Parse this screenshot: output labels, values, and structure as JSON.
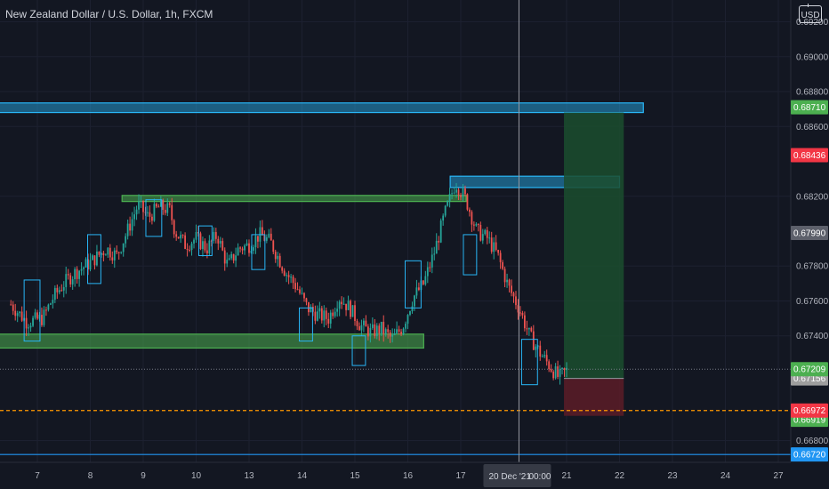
{
  "header": {
    "title": "New Zealand Dollar / U.S. Dollar, 1h, FXCM",
    "currency": "USD"
  },
  "colors": {
    "background": "#131722",
    "bull": "#26a69a",
    "bear": "#ef5350",
    "blue_zone": "#29b6f6",
    "green_zone": "#4caf50",
    "target_zone": "#1b4d2e",
    "stop_zone": "#5c1c27",
    "orange_line": "#ff9800"
  },
  "chart_data": {
    "type": "candlestick",
    "y_range": [
      0.66675,
      0.69325
    ],
    "y_ticks": [
      {
        "value": 0.692,
        "label": "0.69200"
      },
      {
        "value": 0.69,
        "label": "0.69000"
      },
      {
        "value": 0.688,
        "label": "0.68800"
      },
      {
        "value": 0.686,
        "label": "0.68600"
      },
      {
        "value": 0.682,
        "label": "0.68200"
      },
      {
        "value": 0.678,
        "label": "0.67800"
      },
      {
        "value": 0.676,
        "label": "0.67600"
      },
      {
        "value": 0.674,
        "label": "0.67400"
      },
      {
        "value": 0.668,
        "label": "0.66800"
      }
    ],
    "x_ticks": [
      {
        "label": "7",
        "t": 0.5
      },
      {
        "label": "8",
        "t": 1.5
      },
      {
        "label": "9",
        "t": 2.5
      },
      {
        "label": "10",
        "t": 3.5
      },
      {
        "label": "13",
        "t": 4.5
      },
      {
        "label": "14",
        "t": 5.5
      },
      {
        "label": "15",
        "t": 6.5
      },
      {
        "label": "16",
        "t": 7.5
      },
      {
        "label": "17",
        "t": 8.5
      },
      {
        "label": "21",
        "t": 10.5
      },
      {
        "label": "22",
        "t": 11.5
      },
      {
        "label": "23",
        "t": 12.5
      },
      {
        "label": "24",
        "t": 13.5
      },
      {
        "label": "27",
        "t": 14.5
      }
    ],
    "crosshair": {
      "t": 9.6,
      "label": "20 Dec '21",
      "time": "00:00"
    },
    "price_path": [
      [
        0.0,
        0.6758
      ],
      [
        0.3,
        0.6748
      ],
      [
        0.6,
        0.675
      ],
      [
        0.8,
        0.6762
      ],
      [
        1.0,
        0.677
      ],
      [
        1.2,
        0.6776
      ],
      [
        1.5,
        0.6782
      ],
      [
        1.8,
        0.679
      ],
      [
        2.0,
        0.6786
      ],
      [
        2.2,
        0.68
      ],
      [
        2.4,
        0.6815
      ],
      [
        2.6,
        0.6808
      ],
      [
        2.8,
        0.6814
      ],
      [
        3.0,
        0.6812
      ],
      [
        3.1,
        0.68
      ],
      [
        3.3,
        0.6792
      ],
      [
        3.5,
        0.6796
      ],
      [
        3.7,
        0.679
      ],
      [
        3.9,
        0.6798
      ],
      [
        4.0,
        0.6788
      ],
      [
        4.1,
        0.678
      ],
      [
        4.3,
        0.679
      ],
      [
        4.5,
        0.6792
      ],
      [
        4.7,
        0.6798
      ],
      [
        4.9,
        0.6794
      ],
      [
        5.0,
        0.6788
      ],
      [
        5.2,
        0.6776
      ],
      [
        5.4,
        0.6768
      ],
      [
        5.6,
        0.6756
      ],
      [
        5.8,
        0.6752
      ],
      [
        6.0,
        0.675
      ],
      [
        6.2,
        0.6762
      ],
      [
        6.4,
        0.6756
      ],
      [
        6.6,
        0.6746
      ],
      [
        6.8,
        0.6742
      ],
      [
        7.0,
        0.6744
      ],
      [
        7.2,
        0.6738
      ],
      [
        7.4,
        0.6745
      ],
      [
        7.6,
        0.6762
      ],
      [
        7.8,
        0.677
      ],
      [
        8.0,
        0.6788
      ],
      [
        8.2,
        0.681
      ],
      [
        8.4,
        0.6828
      ],
      [
        8.6,
        0.6818
      ],
      [
        8.8,
        0.68
      ],
      [
        9.0,
        0.6796
      ],
      [
        9.2,
        0.6786
      ],
      [
        9.4,
        0.6768
      ],
      [
        9.6,
        0.6756
      ],
      [
        9.8,
        0.674
      ],
      [
        10.0,
        0.673
      ],
      [
        10.2,
        0.6722
      ],
      [
        10.35,
        0.6716
      ],
      [
        10.5,
        0.672
      ]
    ],
    "lines": [
      {
        "name": "last-price",
        "value": 0.67209,
        "label": "0.67209",
        "color": "#4caf50",
        "text_color": "#ffffff",
        "style": "dotted"
      },
      {
        "name": "entry",
        "value": 0.67156,
        "label": "0.67156",
        "color": "#9e9e9e",
        "text_color": "#ffffff",
        "style": "none"
      },
      {
        "name": "stop",
        "value": 0.66972,
        "label": "0.66972",
        "color": "#f23645",
        "text_color": "#ffffff",
        "style": "dashed-orange"
      },
      {
        "name": "low-marker",
        "value": 0.66919,
        "label": "0.66919",
        "color": "#4caf50",
        "text_color": "#ffffff",
        "style": "none"
      },
      {
        "name": "support",
        "value": 0.6672,
        "label": "0.66720",
        "color": "#2196f3",
        "text_color": "#ffffff",
        "style": "solid-blue"
      }
    ],
    "level_badges": [
      {
        "name": "target",
        "value": 0.6871,
        "label": "0.68710",
        "color": "#4caf50"
      },
      {
        "name": "resistance",
        "value": 0.68436,
        "label": "0.68436",
        "color": "#f23645"
      },
      {
        "name": "mid",
        "value": 0.6799,
        "label": "0.67990",
        "color": "#5d606b"
      }
    ],
    "zones": [
      {
        "name": "top-resistance-zone",
        "t0": -0.5,
        "t1": 11.95,
        "y0": 0.68735,
        "y1": 0.6868,
        "kind": "blue"
      },
      {
        "name": "upper-resistance-zone",
        "t0": 8.3,
        "t1": 11.5,
        "y0": 0.68315,
        "y1": 0.6825,
        "kind": "blue"
      },
      {
        "name": "neckline-zone",
        "t0": 2.1,
        "t1": 8.6,
        "y0": 0.68205,
        "y1": 0.6817,
        "kind": "green"
      },
      {
        "name": "support-zone",
        "t0": -0.5,
        "t1": 7.8,
        "y0": 0.6741,
        "y1": 0.6733,
        "kind": "green"
      }
    ],
    "position": {
      "t0": 10.45,
      "t1": 11.58,
      "target": 0.6868,
      "entry": 0.67156,
      "stop": 0.66972
    },
    "markers": [
      {
        "t0": 0.25,
        "t1": 0.55,
        "y0": 0.6772,
        "y1": 0.6737
      },
      {
        "t0": 1.45,
        "t1": 1.7,
        "y0": 0.6798,
        "y1": 0.677
      },
      {
        "t0": 2.55,
        "t1": 2.85,
        "y0": 0.6818,
        "y1": 0.6797
      },
      {
        "t0": 3.55,
        "t1": 3.8,
        "y0": 0.6803,
        "y1": 0.6786
      },
      {
        "t0": 4.55,
        "t1": 4.8,
        "y0": 0.6798,
        "y1": 0.6778
      },
      {
        "t0": 5.45,
        "t1": 5.7,
        "y0": 0.6756,
        "y1": 0.6737
      },
      {
        "t0": 6.45,
        "t1": 6.7,
        "y0": 0.674,
        "y1": 0.6723
      },
      {
        "t0": 7.45,
        "t1": 7.75,
        "y0": 0.6783,
        "y1": 0.6756
      },
      {
        "t0": 8.55,
        "t1": 8.8,
        "y0": 0.6798,
        "y1": 0.6775
      },
      {
        "t0": 9.65,
        "t1": 9.95,
        "y0": 0.6738,
        "y1": 0.6712
      }
    ]
  }
}
